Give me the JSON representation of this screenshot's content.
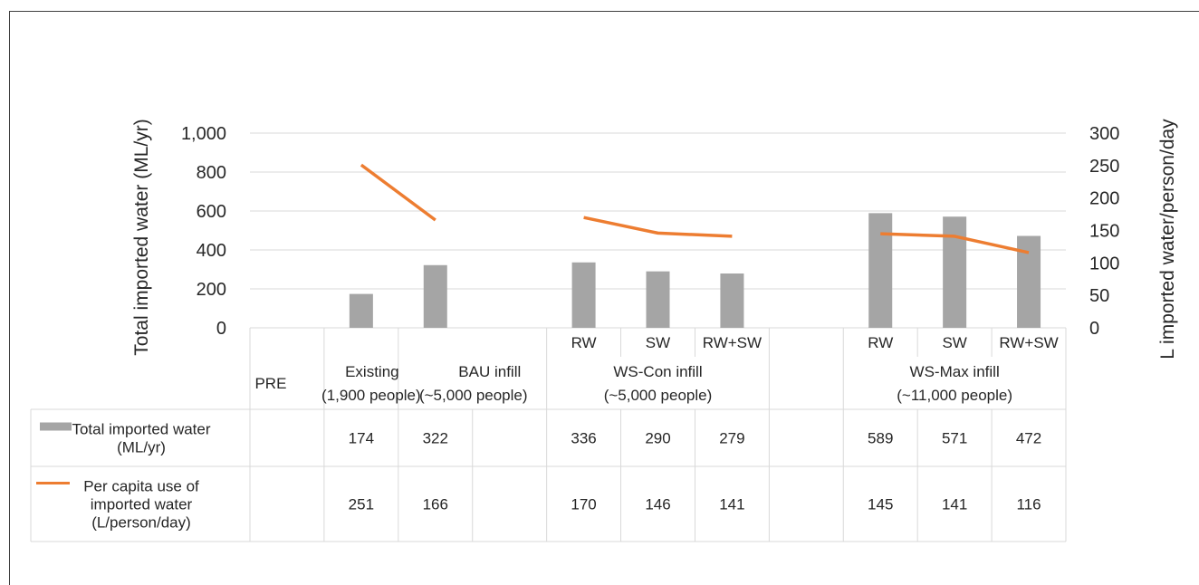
{
  "chart_data": {
    "type": "bar",
    "ylabel": "Total imported water  (ML/yr)",
    "y2label": "L imported water/person/day",
    "ylim": [
      0,
      1000
    ],
    "y2lim": [
      0,
      300
    ],
    "yticks": [
      "0",
      "200",
      "400",
      "600",
      "800",
      "1,000"
    ],
    "y2ticks": [
      "0",
      "50",
      "100",
      "150",
      "200",
      "250",
      "300"
    ],
    "grid": true,
    "legend": "in data table",
    "categories": [
      "PRE",
      "Existing",
      "BAU infill",
      "",
      "RW",
      "SW",
      "RW+SW",
      "",
      "RW",
      "SW",
      "RW+SW"
    ],
    "groups": [
      {
        "label": "PRE",
        "label2": ""
      },
      {
        "label": "Existing",
        "label2": "(1,900 people)"
      },
      {
        "label": "BAU infill",
        "label2": "(~5,000 people)"
      },
      {
        "label": "WS-Con infill",
        "label2": "(~5,000 people)"
      },
      {
        "label": "WS-Max infill",
        "label2": "(~11,000 people)"
      }
    ],
    "series": [
      {
        "name": "Total imported water (ML/yr)",
        "kind": "bar",
        "axis": "left",
        "values": [
          null,
          174,
          322,
          null,
          336,
          290,
          279,
          null,
          589,
          571,
          472
        ]
      },
      {
        "name": "Per capita use of imported water (L/person/day)",
        "kind": "line",
        "axis": "right",
        "values": [
          null,
          251,
          166,
          null,
          170,
          146,
          141,
          null,
          145,
          141,
          116
        ]
      }
    ],
    "table": [
      {
        "legend": "Total imported water (ML/yr)",
        "legend_lines": [
          "Total imported water",
          "(ML/yr)"
        ],
        "cells": [
          "",
          "174",
          "322",
          "",
          "336",
          "290",
          "279",
          "",
          "589",
          "571",
          "472"
        ]
      },
      {
        "legend": "Per capita use of imported water (L/person/day)",
        "legend_lines": [
          "Per capita use of",
          "imported water",
          "(L/person/day)"
        ],
        "cells": [
          "",
          "251",
          "166",
          "",
          "170",
          "146",
          "141",
          "",
          "145",
          "141",
          "116"
        ]
      }
    ]
  },
  "colors": {
    "bar": "#a5a5a5",
    "line": "#ed7d31",
    "grid": "#d9d9d9",
    "table_border": "#d9d9d9",
    "text": "#262626",
    "frame": "#3f3f3f"
  }
}
